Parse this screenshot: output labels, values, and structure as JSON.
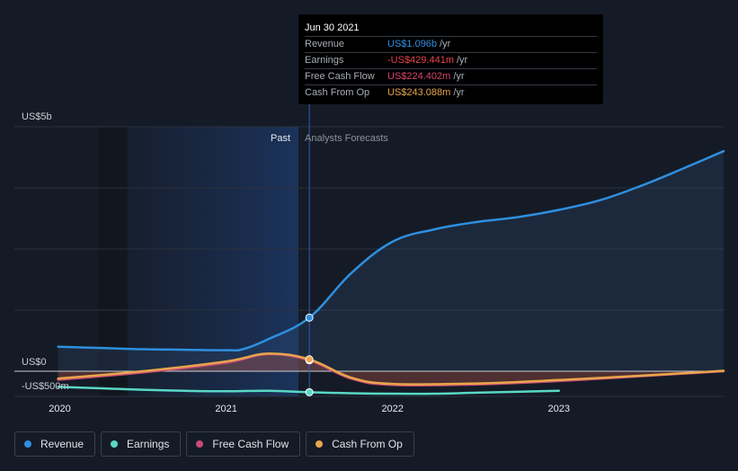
{
  "tooltip": {
    "date": "Jun 30 2021",
    "rows": [
      {
        "label": "Revenue",
        "value": "US$1.096b",
        "unit": "/yr",
        "color": "#2e8fe0"
      },
      {
        "label": "Earnings",
        "value": "-US$429.441m",
        "unit": "/yr",
        "color": "#e8424a"
      },
      {
        "label": "Free Cash Flow",
        "value": "US$224.402m",
        "unit": "/yr",
        "color": "#d6436e"
      },
      {
        "label": "Cash From Op",
        "value": "US$243.088m",
        "unit": "/yr",
        "color": "#e8a54b"
      }
    ]
  },
  "legend": [
    {
      "label": "Revenue",
      "color": "#2e8fe0"
    },
    {
      "label": "Earnings",
      "color": "#58d8c5"
    },
    {
      "label": "Free Cash Flow",
      "color": "#c94a79"
    },
    {
      "label": "Cash From Op",
      "color": "#e8a54b"
    }
  ],
  "chart_data": {
    "type": "line",
    "y_tick_labels": [
      "US$5b",
      "US$0",
      "-US$500m"
    ],
    "x_tick_labels": [
      "2020",
      "2021",
      "2022",
      "2023"
    ],
    "region_labels": {
      "past": "Past",
      "forecast": "Analysts Forecasts"
    },
    "x_range": [
      2019.9,
      2023.99
    ],
    "ylim": [
      -500,
      5000
    ],
    "divider_x": 2021.5,
    "series": [
      {
        "name": "Revenue",
        "color": "#2e8fe0",
        "x": [
          2019.99,
          2020.25,
          2020.5,
          2020.75,
          2021.0,
          2021.1,
          2021.25,
          2021.5,
          2021.75,
          2022.0,
          2022.25,
          2022.5,
          2022.75,
          2023.0,
          2023.25,
          2023.5,
          2023.75,
          2023.99
        ],
        "y": [
          500,
          475,
          450,
          440,
          430,
          450,
          650,
          1096,
          2000,
          2650,
          2900,
          3050,
          3150,
          3300,
          3500,
          3800,
          4150,
          4500
        ]
      },
      {
        "name": "Earnings",
        "color": "#58d8c5",
        "x": [
          2019.99,
          2020.25,
          2020.5,
          2020.75,
          2021.0,
          2021.25,
          2021.5,
          2021.75,
          2022.0,
          2022.25,
          2022.5,
          2022.75,
          2023.0
        ],
        "y": [
          -320,
          -350,
          -380,
          -400,
          -410,
          -400,
          -429.441,
          -450,
          -460,
          -460,
          -440,
          -420,
          -400
        ]
      },
      {
        "name": "Free Cash Flow",
        "color": "#c94a79",
        "x": [
          2019.99,
          2020.5,
          2021.0,
          2021.25,
          2021.5,
          2021.75,
          2022.0,
          2022.5,
          2023.0,
          2023.5,
          2023.99
        ],
        "y": [
          -175,
          -25,
          175,
          350,
          224.402,
          -150,
          -280,
          -270,
          -200,
          -100,
          0
        ]
      },
      {
        "name": "Cash From Op",
        "color": "#e8a54b",
        "x": [
          2019.99,
          2020.5,
          2021.0,
          2021.25,
          2021.5,
          2021.75,
          2022.0,
          2022.5,
          2023.0,
          2023.5,
          2023.99
        ],
        "y": [
          -150,
          0,
          200,
          360,
          243.088,
          -130,
          -260,
          -250,
          -180,
          -90,
          10
        ]
      }
    ]
  }
}
